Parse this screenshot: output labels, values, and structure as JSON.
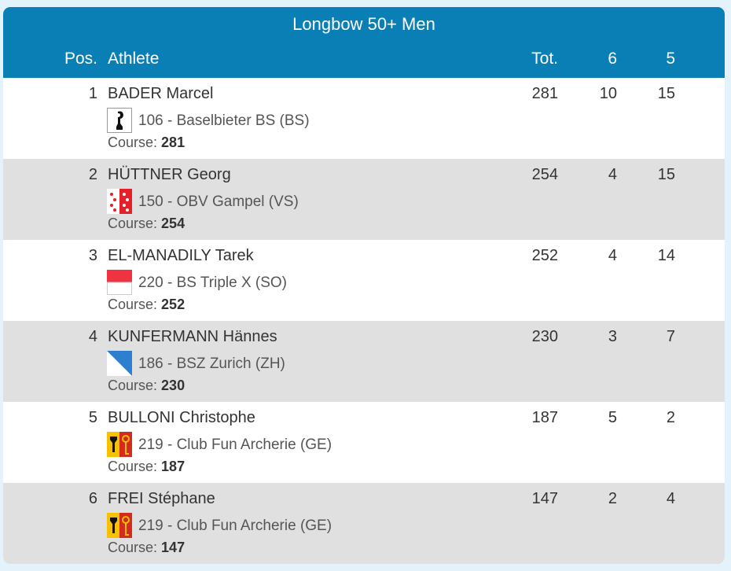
{
  "table": {
    "title": "Longbow 50+ Men",
    "columns": [
      "Pos.",
      "Athlete",
      "Tot.",
      "6",
      "5"
    ],
    "rows": [
      {
        "pos": 1,
        "athlete": "BADER Marcel",
        "club": "106 - Baselbieter BS (BS)",
        "course_label": "Course:",
        "course": 281,
        "tot": 281,
        "c6": 10,
        "c5": 15
      },
      {
        "pos": 2,
        "athlete": "HÜTTNER Georg",
        "club": "150 - OBV Gampel (VS)",
        "course_label": "Course:",
        "course": 254,
        "tot": 254,
        "c6": 4,
        "c5": 15
      },
      {
        "pos": 3,
        "athlete": "EL-MANADILY Tarek",
        "club": "220 - BS Triple X (SO)",
        "course_label": "Course:",
        "course": 252,
        "tot": 252,
        "c6": 4,
        "c5": 14
      },
      {
        "pos": 4,
        "athlete": "KUNFERMANN Hännes",
        "club": "186 - BSZ Zurich (ZH)",
        "course_label": "Course:",
        "course": 230,
        "tot": 230,
        "c6": 3,
        "c5": 7
      },
      {
        "pos": 5,
        "athlete": "BULLONI Christophe",
        "club": "219 - Club Fun Archerie (GE)",
        "course_label": "Course:",
        "course": 187,
        "tot": 187,
        "c6": 5,
        "c5": 2
      },
      {
        "pos": 6,
        "athlete": "FREI Stéphane",
        "club": "219 - Club Fun Archerie (GE)",
        "course_label": "Course:",
        "course": 147,
        "tot": 147,
        "c6": 2,
        "c5": 4
      }
    ]
  }
}
